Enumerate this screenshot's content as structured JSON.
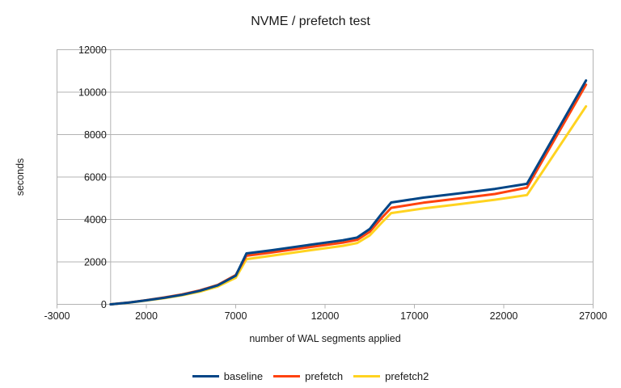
{
  "colors": {
    "background": "#ffffff",
    "grid": "#b3b3b3",
    "axis": "#b3b3b3",
    "text": "#1a1a1a",
    "series_baseline": "#004586",
    "series_prefetch": "#ff420e",
    "series_prefetch2": "#ffd320"
  },
  "chart_data": {
    "type": "line",
    "title": "NVME / prefetch test",
    "xlabel": "number of WAL segments applied",
    "ylabel": "seconds",
    "xlim": [
      -3000,
      27000
    ],
    "ylim": [
      0,
      12000
    ],
    "grid": true,
    "legend_position": "bottom-center",
    "x_ticks": [
      -3000,
      2000,
      7000,
      12000,
      17000,
      22000,
      27000
    ],
    "x_tick_labels": [
      "-3000",
      "2000",
      "7000",
      "12000",
      "17000",
      "22000",
      "27000"
    ],
    "y_ticks": [
      0,
      2000,
      4000,
      6000,
      8000,
      10000,
      12000
    ],
    "y_tick_labels": [
      "0",
      "2000",
      "4000",
      "6000",
      "8000",
      "10000",
      "12000"
    ],
    "x": [
      0,
      1000,
      2000,
      3000,
      4000,
      5000,
      6000,
      7000,
      7600,
      9000,
      11000,
      13000,
      13800,
      14500,
      15200,
      15700,
      17500,
      19500,
      21500,
      23300,
      26600
    ],
    "series": [
      {
        "name": "baseline",
        "color": "#004586",
        "values": [
          0,
          80,
          190,
          310,
          450,
          640,
          900,
          1350,
          2400,
          2550,
          2790,
          3020,
          3150,
          3550,
          4300,
          4800,
          5030,
          5230,
          5440,
          5680,
          10550
        ]
      },
      {
        "name": "prefetch",
        "color": "#ff420e",
        "values": [
          0,
          85,
          200,
          325,
          470,
          660,
          920,
          1380,
          2290,
          2440,
          2680,
          2910,
          3040,
          3420,
          4100,
          4550,
          4790,
          4990,
          5200,
          5500,
          10350
        ]
      },
      {
        "name": "prefetch2",
        "color": "#ffd320",
        "values": [
          0,
          75,
          180,
          290,
          425,
          600,
          840,
          1250,
          2130,
          2290,
          2530,
          2760,
          2890,
          3250,
          3870,
          4300,
          4520,
          4720,
          4930,
          5150,
          9330
        ]
      }
    ]
  }
}
